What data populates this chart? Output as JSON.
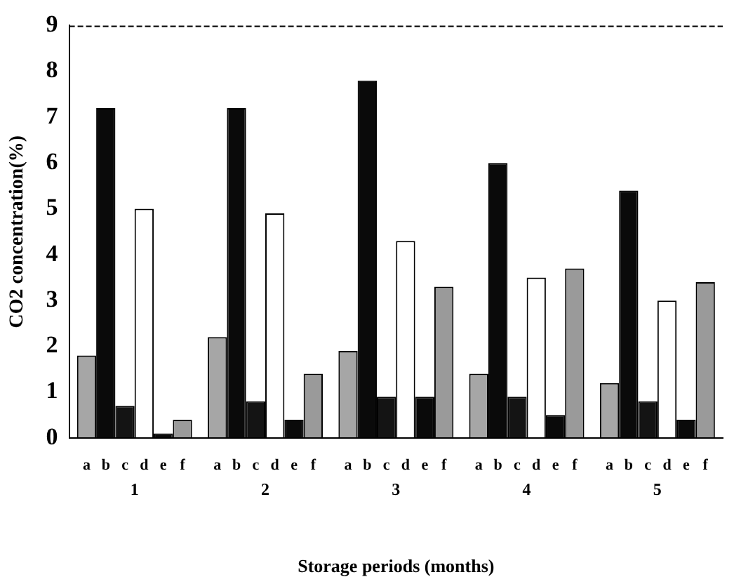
{
  "chart_data": {
    "type": "bar",
    "xlabel": "Storage periods (months)",
    "ylabel": "CO2 concentration(%)",
    "categories": [
      "1",
      "2",
      "3",
      "4",
      "5"
    ],
    "series": [
      {
        "name": "a",
        "color": "#a6a6a6",
        "values": [
          1.8,
          2.2,
          1.9,
          1.4,
          1.2
        ]
      },
      {
        "name": "b",
        "color": "#0a0a0a",
        "values": [
          7.2,
          7.2,
          7.8,
          6.0,
          5.4
        ]
      },
      {
        "name": "c",
        "color": "#141414",
        "values": [
          0.7,
          0.8,
          0.9,
          0.9,
          0.8
        ]
      },
      {
        "name": "d",
        "color": "#ffffff",
        "values": [
          5.0,
          4.9,
          4.3,
          3.5,
          3.0
        ]
      },
      {
        "name": "e",
        "color": "#0a0a0a",
        "values": [
          0.1,
          0.4,
          0.9,
          0.5,
          0.4
        ]
      },
      {
        "name": "f",
        "color": "#9a9a9a",
        "values": [
          0.4,
          1.4,
          3.3,
          3.7,
          3.4
        ]
      }
    ],
    "ylim": [
      0,
      9
    ],
    "yticks": [
      0,
      1,
      2,
      3,
      4,
      5,
      6,
      7,
      8,
      9
    ],
    "grid": false,
    "legend": false
  }
}
